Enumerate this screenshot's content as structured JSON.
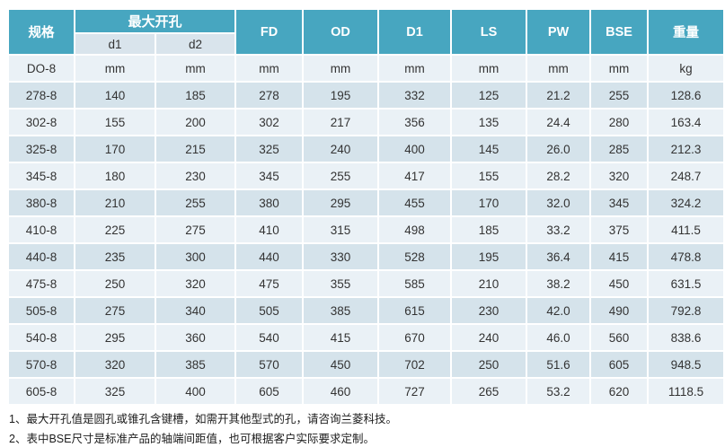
{
  "colors": {
    "header_bg": "#47a6c0",
    "subheader_bg": "#d9e4ec",
    "row_light": "#eaf1f6",
    "row_dark": "#d5e3eb",
    "text": "#333333"
  },
  "table": {
    "header": {
      "spec": "规格",
      "max_bore_group": "最大开孔",
      "sub_d1": "d1",
      "sub_d2": "d2",
      "cols": [
        "FD",
        "OD",
        "D1",
        "LS",
        "PW",
        "BSE",
        "重量"
      ]
    },
    "units_row": [
      "DO-8",
      "mm",
      "mm",
      "mm",
      "mm",
      "mm",
      "mm",
      "mm",
      "mm",
      "kg"
    ],
    "rows": [
      [
        "278-8",
        "140",
        "185",
        "278",
        "195",
        "332",
        "125",
        "21.2",
        "255",
        "128.6"
      ],
      [
        "302-8",
        "155",
        "200",
        "302",
        "217",
        "356",
        "135",
        "24.4",
        "280",
        "163.4"
      ],
      [
        "325-8",
        "170",
        "215",
        "325",
        "240",
        "400",
        "145",
        "26.0",
        "285",
        "212.3"
      ],
      [
        "345-8",
        "180",
        "230",
        "345",
        "255",
        "417",
        "155",
        "28.2",
        "320",
        "248.7"
      ],
      [
        "380-8",
        "210",
        "255",
        "380",
        "295",
        "455",
        "170",
        "32.0",
        "345",
        "324.2"
      ],
      [
        "410-8",
        "225",
        "275",
        "410",
        "315",
        "498",
        "185",
        "33.2",
        "375",
        "411.5"
      ],
      [
        "440-8",
        "235",
        "300",
        "440",
        "330",
        "528",
        "195",
        "36.4",
        "415",
        "478.8"
      ],
      [
        "475-8",
        "250",
        "320",
        "475",
        "355",
        "585",
        "210",
        "38.2",
        "450",
        "631.5"
      ],
      [
        "505-8",
        "275",
        "340",
        "505",
        "385",
        "615",
        "230",
        "42.0",
        "490",
        "792.8"
      ],
      [
        "540-8",
        "295",
        "360",
        "540",
        "415",
        "670",
        "240",
        "46.0",
        "560",
        "838.6"
      ],
      [
        "570-8",
        "320",
        "385",
        "570",
        "450",
        "702",
        "250",
        "51.6",
        "605",
        "948.5"
      ],
      [
        "605-8",
        "325",
        "400",
        "605",
        "460",
        "727",
        "265",
        "53.2",
        "620",
        "1118.5"
      ]
    ]
  },
  "notes": [
    "1、最大开孔值是圆孔或锥孔含键槽，如需开其他型式的孔，请咨询兰菱科技。",
    "2、表中BSE尺寸是标准产品的轴端间距值，也可根据客户实际要求定制。"
  ]
}
